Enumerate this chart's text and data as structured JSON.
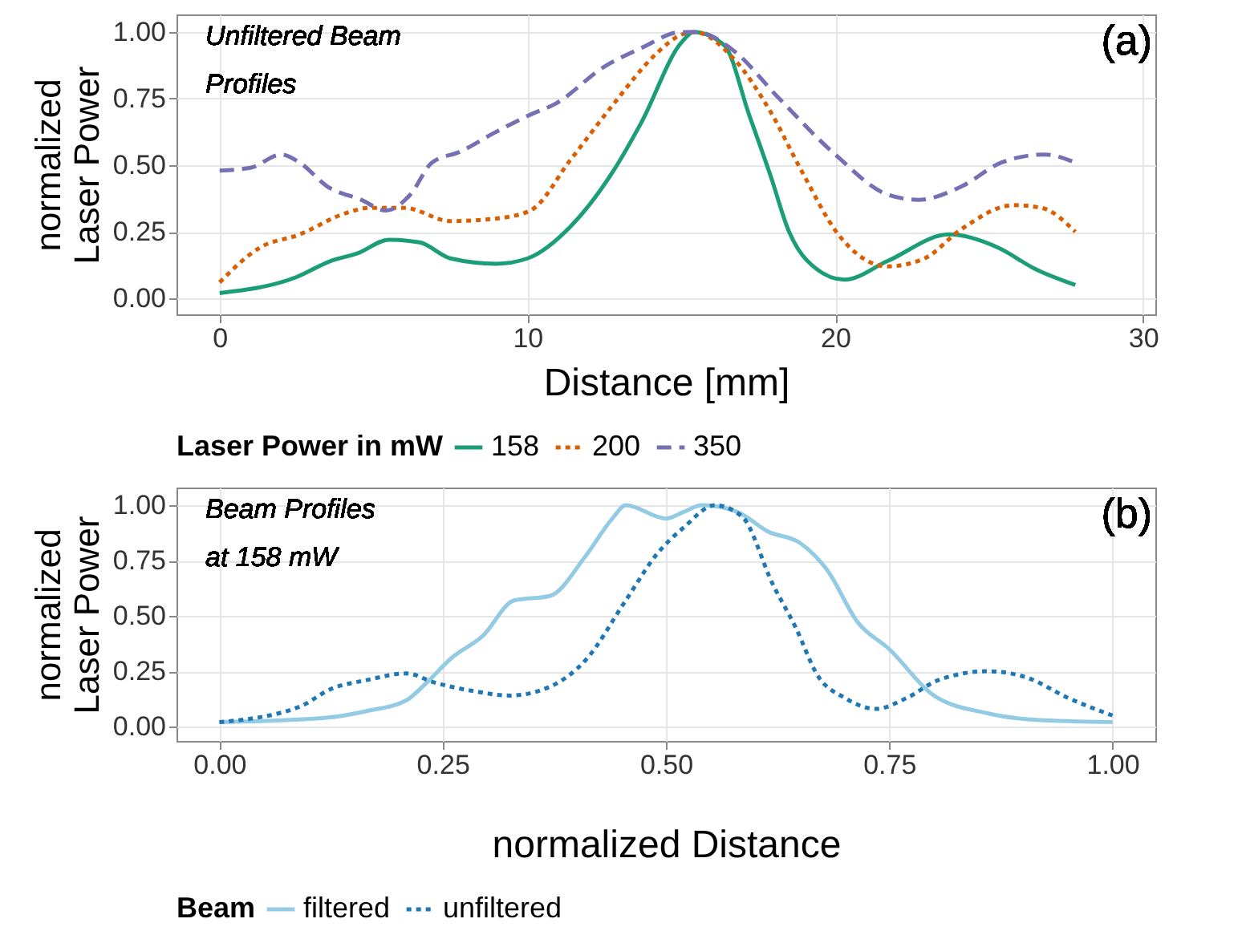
{
  "chart_data": [
    {
      "type": "line",
      "xlabel": "Distance [mm]",
      "ylabel": "normalized\nLaser Power",
      "legend_title": "Laser Power in mW",
      "legend": "bottom",
      "grid": true,
      "xlim": [
        -1.4,
        30.4
      ],
      "ylim": [
        -0.06,
        1.066
      ],
      "xticks": [
        0,
        10,
        20,
        30
      ],
      "yticks": [
        {
          "value": 0,
          "label": "0.00"
        },
        {
          "value": 0.25,
          "label": "0.25"
        },
        {
          "value": 0.5,
          "label": "0.50"
        },
        {
          "value": 0.75,
          "label": "0.75"
        },
        {
          "value": 1,
          "label": "1.00"
        }
      ],
      "annotations": [
        "Unfiltered Beam\nProfiles",
        "(a)"
      ],
      "series": [
        {
          "name": "158",
          "color": "#1b9e77",
          "line_style": "solid",
          "x": [
            0,
            2.5,
            3.6,
            4.5,
            5.5,
            6.5,
            7.5,
            9.0,
            10,
            11.4,
            12.8,
            13.7,
            15,
            15.4,
            16.4,
            17.2,
            17.9,
            18.5,
            19.1,
            20.3,
            21.7,
            23.7,
            25.3,
            26.5,
            27.8
          ],
          "values": [
            0.02,
            0.08,
            0.14,
            0.17,
            0.22,
            0.21,
            0.15,
            0.13,
            0.15,
            0.27,
            0.48,
            0.66,
            0.96,
            1.0,
            0.95,
            0.69,
            0.46,
            0.25,
            0.14,
            0.07,
            0.14,
            0.24,
            0.19,
            0.11,
            0.05
          ]
        },
        {
          "name": "200",
          "color": "#d95f02",
          "line_style": "dotted",
          "x": [
            0,
            1.3,
            2.6,
            4.1,
            4.9,
            6,
            7.5,
            9,
            10.1,
            11.4,
            12.8,
            14.2,
            15,
            15.4,
            16.7,
            17.9,
            18.9,
            20.1,
            21.7,
            22.9,
            24.1,
            25.8,
            26.7,
            27.8
          ],
          "values": [
            0.06,
            0.19,
            0.24,
            0.32,
            0.34,
            0.34,
            0.29,
            0.3,
            0.33,
            0.52,
            0.73,
            0.92,
            0.99,
            1.0,
            0.9,
            0.7,
            0.48,
            0.24,
            0.12,
            0.15,
            0.26,
            0.35,
            0.34,
            0.25
          ]
        },
        {
          "name": "350",
          "color": "#7570b3",
          "line_style": "dashed",
          "x": [
            0,
            1,
            2,
            2.6,
            3.5,
            4.6,
            5.4,
            6.2,
            6.9,
            7.8,
            8.9,
            10.1,
            10.9,
            12.5,
            13.7,
            15,
            15.5,
            16.7,
            18.1,
            20,
            21.7,
            22.7,
            24.1,
            25.4,
            26.8,
            27.8
          ],
          "values": [
            0.48,
            0.49,
            0.54,
            0.51,
            0.42,
            0.37,
            0.33,
            0.39,
            0.51,
            0.55,
            0.62,
            0.69,
            0.73,
            0.87,
            0.94,
            1.0,
            1.0,
            0.93,
            0.76,
            0.54,
            0.39,
            0.37,
            0.42,
            0.51,
            0.54,
            0.51
          ]
        }
      ]
    },
    {
      "type": "line",
      "xlabel": "normalized Distance",
      "ylabel": "normalized\nLaser Power",
      "legend_title": "Beam",
      "legend": "bottom",
      "grid": true,
      "xlim": [
        -0.048,
        1.048
      ],
      "ylim": [
        -0.065,
        1.08
      ],
      "xticks": [
        {
          "value": 0,
          "label": "0.00"
        },
        {
          "value": 0.25,
          "label": "0.25"
        },
        {
          "value": 0.5,
          "label": "0.50"
        },
        {
          "value": 0.75,
          "label": "0.75"
        },
        {
          "value": 1,
          "label": "1.00"
        }
      ],
      "yticks": [
        {
          "value": 0,
          "label": "0.00"
        },
        {
          "value": 0.25,
          "label": "0.25"
        },
        {
          "value": 0.5,
          "label": "0.50"
        },
        {
          "value": 0.75,
          "label": "0.75"
        },
        {
          "value": 1,
          "label": "1.00"
        }
      ],
      "annotations": [
        "Beam Profiles\nat 158 mW",
        "(b)"
      ],
      "series": [
        {
          "name": "filtered",
          "color": "#92cbe3",
          "line_style": "solid",
          "x": [
            0,
            0.12,
            0.165,
            0.21,
            0.23,
            0.26,
            0.295,
            0.33,
            0.37,
            0.41,
            0.44,
            0.455,
            0.5,
            0.52,
            0.54,
            0.58,
            0.615,
            0.65,
            0.68,
            0.715,
            0.75,
            0.8,
            0.86,
            0.915,
            1.0
          ],
          "values": [
            0.02,
            0.04,
            0.07,
            0.12,
            0.19,
            0.31,
            0.41,
            0.57,
            0.59,
            0.77,
            0.94,
            1.0,
            0.94,
            0.97,
            1.0,
            0.97,
            0.88,
            0.83,
            0.71,
            0.47,
            0.35,
            0.14,
            0.06,
            0.03,
            0.02
          ]
        },
        {
          "name": "unfiltered",
          "color": "#1f78b4",
          "line_style": "dotted",
          "x": [
            0,
            0.09,
            0.125,
            0.165,
            0.21,
            0.24,
            0.285,
            0.325,
            0.37,
            0.41,
            0.455,
            0.49,
            0.52,
            0.555,
            0.585,
            0.62,
            0.645,
            0.67,
            0.7,
            0.735,
            0.77,
            0.805,
            0.86,
            0.905,
            0.95,
            1.0
          ],
          "values": [
            0.02,
            0.09,
            0.17,
            0.21,
            0.24,
            0.2,
            0.16,
            0.14,
            0.18,
            0.3,
            0.57,
            0.78,
            0.9,
            1.0,
            0.95,
            0.64,
            0.45,
            0.23,
            0.13,
            0.08,
            0.13,
            0.21,
            0.25,
            0.22,
            0.13,
            0.05
          ]
        }
      ]
    }
  ]
}
